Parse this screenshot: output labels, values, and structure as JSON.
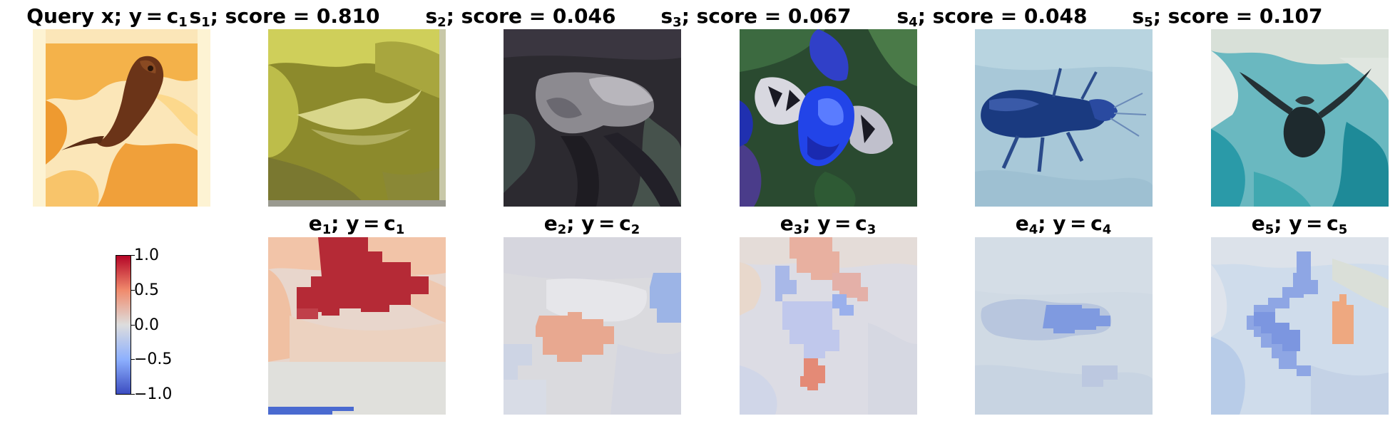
{
  "top_row": [
    {
      "title_main": "Query x; y = c",
      "title_sub": "1"
    },
    {
      "title_main": "s",
      "title_sub": "1",
      "title_tail": "; score = 0.810"
    },
    {
      "title_main": "s",
      "title_sub": "2",
      "title_tail": "; score = 0.046"
    },
    {
      "title_main": "s",
      "title_sub": "3",
      "title_tail": "; score = 0.067"
    },
    {
      "title_main": "s",
      "title_sub": "4",
      "title_tail": "; score = 0.048"
    },
    {
      "title_main": "s",
      "title_sub": "5",
      "title_tail": "; score = 0.107"
    }
  ],
  "bottom_row": [
    {
      "title_main": "e",
      "title_sub": "1",
      "title_mid": "; y = c",
      "title_sub2": "1"
    },
    {
      "title_main": "e",
      "title_sub": "2",
      "title_mid": "; y = c",
      "title_sub2": "2"
    },
    {
      "title_main": "e",
      "title_sub": "3",
      "title_mid": "; y = c",
      "title_sub2": "3"
    },
    {
      "title_main": "e",
      "title_sub": "4",
      "title_mid": "; y = c",
      "title_sub2": "4"
    },
    {
      "title_main": "e",
      "title_sub": "5",
      "title_mid": "; y = c",
      "title_sub2": "5"
    }
  ],
  "colorbar": {
    "ticks": [
      "1.0",
      "0.5",
      "0.0",
      "−0.5",
      "−1.0"
    ],
    "colormap": "coolwarm",
    "color_low": "#3b4cc0",
    "color_mid": "#dddddd",
    "color_high": "#b40426"
  }
}
